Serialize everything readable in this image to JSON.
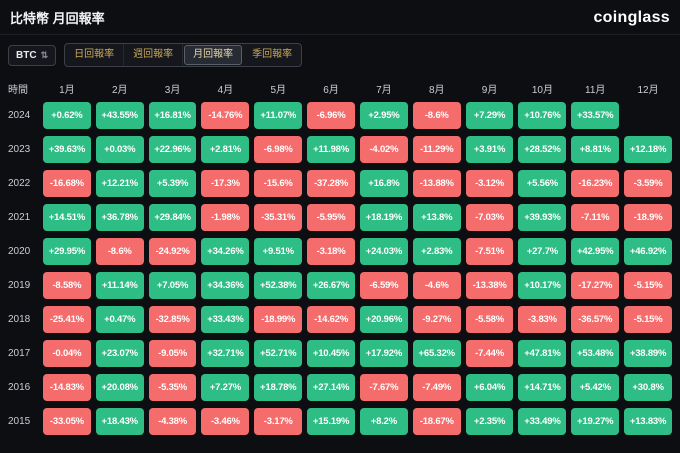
{
  "header": {
    "title": "比特幣 月回報率",
    "logo_text": "coinglass"
  },
  "controls": {
    "symbol_selector": {
      "value": "BTC",
      "icon": "sort-arrows"
    },
    "tabs": [
      {
        "label": "日回報率",
        "active": false
      },
      {
        "label": "週回報率",
        "active": false
      },
      {
        "label": "月回報率",
        "active": true
      },
      {
        "label": "季回報率",
        "active": false
      }
    ]
  },
  "colors": {
    "positive": "#2ebd85",
    "negative": "#f56c6c",
    "background": "#0d0e12"
  },
  "table": {
    "time_header": "時間",
    "month_headers": [
      "1月",
      "2月",
      "3月",
      "4月",
      "5月",
      "6月",
      "7月",
      "8月",
      "9月",
      "10月",
      "11月",
      "12月"
    ],
    "rows": [
      {
        "year": "2024",
        "values": [
          "+0.62%",
          "+43.55%",
          "+16.81%",
          "-14.76%",
          "+11.07%",
          "-6.96%",
          "+2.95%",
          "-8.6%",
          "+7.29%",
          "+10.76%",
          "+33.57%",
          ""
        ]
      },
      {
        "year": "2023",
        "values": [
          "+39.63%",
          "+0.03%",
          "+22.96%",
          "+2.81%",
          "-6.98%",
          "+11.98%",
          "-4.02%",
          "-11.29%",
          "+3.91%",
          "+28.52%",
          "+8.81%",
          "+12.18%"
        ]
      },
      {
        "year": "2022",
        "values": [
          "-16.68%",
          "+12.21%",
          "+5.39%",
          "-17.3%",
          "-15.6%",
          "-37.28%",
          "+16.8%",
          "-13.88%",
          "-3.12%",
          "+5.56%",
          "-16.23%",
          "-3.59%"
        ]
      },
      {
        "year": "2021",
        "values": [
          "+14.51%",
          "+36.78%",
          "+29.84%",
          "-1.98%",
          "-35.31%",
          "-5.95%",
          "+18.19%",
          "+13.8%",
          "-7.03%",
          "+39.93%",
          "-7.11%",
          "-18.9%"
        ]
      },
      {
        "year": "2020",
        "values": [
          "+29.95%",
          "-8.6%",
          "-24.92%",
          "+34.26%",
          "+9.51%",
          "-3.18%",
          "+24.03%",
          "+2.83%",
          "-7.51%",
          "+27.7%",
          "+42.95%",
          "+46.92%"
        ]
      },
      {
        "year": "2019",
        "values": [
          "-8.58%",
          "+11.14%",
          "+7.05%",
          "+34.36%",
          "+52.38%",
          "+26.67%",
          "-6.59%",
          "-4.6%",
          "-13.38%",
          "+10.17%",
          "-17.27%",
          "-5.15%"
        ]
      },
      {
        "year": "2018",
        "values": [
          "-25.41%",
          "+0.47%",
          "-32.85%",
          "+33.43%",
          "-18.99%",
          "-14.62%",
          "+20.96%",
          "-9.27%",
          "-5.58%",
          "-3.83%",
          "-36.57%",
          "-5.15%"
        ]
      },
      {
        "year": "2017",
        "values": [
          "-0.04%",
          "+23.07%",
          "-9.05%",
          "+32.71%",
          "+52.71%",
          "+10.45%",
          "+17.92%",
          "+65.32%",
          "-7.44%",
          "+47.81%",
          "+53.48%",
          "+38.89%"
        ]
      },
      {
        "year": "2016",
        "values": [
          "-14.83%",
          "+20.08%",
          "-5.35%",
          "+7.27%",
          "+18.78%",
          "+27.14%",
          "-7.67%",
          "-7.49%",
          "+6.04%",
          "+14.71%",
          "+5.42%",
          "+30.8%"
        ]
      },
      {
        "year": "2015",
        "values": [
          "-33.05%",
          "+18.43%",
          "-4.38%",
          "-3.46%",
          "-3.17%",
          "+15.19%",
          "+8.2%",
          "-18.67%",
          "+2.35%",
          "+33.49%",
          "+19.27%",
          "+13.83%"
        ]
      }
    ]
  }
}
